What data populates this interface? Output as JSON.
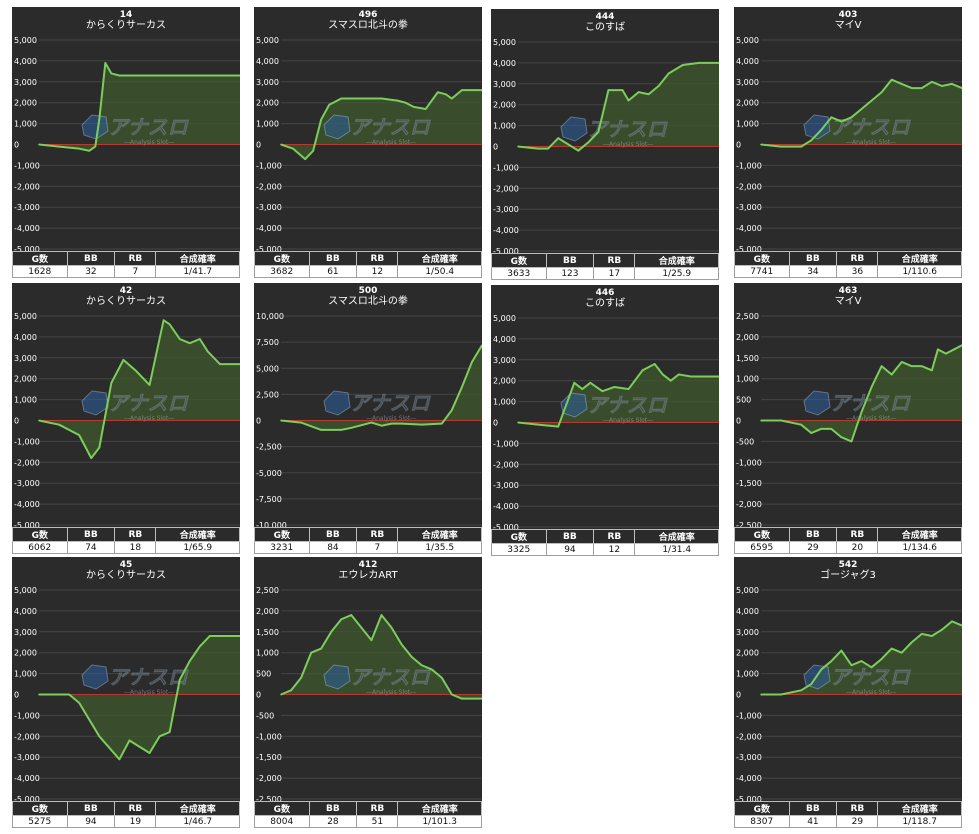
{
  "stats_headers": [
    "G数",
    "BB",
    "RB",
    "合成確率"
  ],
  "watermark": {
    "title": "アナスロ",
    "subtitle": "―Analysis Slot―"
  },
  "colors": {
    "panel_bg": "#2b2b2b",
    "line": "#7ccd5a",
    "fill": "#3f5a2e",
    "zero_line": "#b53a2f",
    "grid": "#454545",
    "text": "#ffffff"
  },
  "panels": [
    {
      "number": "14",
      "name": "からくりサーカス",
      "stats": [
        "1628",
        "32",
        "7",
        "1/41.7"
      ]
    },
    {
      "number": "496",
      "name": "スマスロ北斗の拳",
      "stats": [
        "3682",
        "61",
        "12",
        "1/50.4"
      ]
    },
    {
      "number": "444",
      "name": "このすば",
      "stats": [
        "3633",
        "123",
        "17",
        "1/25.9"
      ]
    },
    {
      "number": "403",
      "name": "マイV",
      "stats": [
        "7741",
        "34",
        "36",
        "1/110.6"
      ]
    },
    {
      "number": "42",
      "name": "からくりサーカス",
      "stats": [
        "6062",
        "74",
        "18",
        "1/65.9"
      ]
    },
    {
      "number": "500",
      "name": "スマスロ北斗の拳",
      "stats": [
        "3231",
        "84",
        "7",
        "1/35.5"
      ]
    },
    {
      "number": "446",
      "name": "このすば",
      "stats": [
        "3325",
        "94",
        "12",
        "1/31.4"
      ]
    },
    {
      "number": "463",
      "name": "マイV",
      "stats": [
        "6595",
        "29",
        "20",
        "1/134.6"
      ]
    },
    {
      "number": "45",
      "name": "からくりサーカス",
      "stats": [
        "5275",
        "94",
        "19",
        "1/46.7"
      ]
    },
    {
      "number": "412",
      "name": "エウレカART",
      "stats": [
        "8004",
        "28",
        "51",
        "1/101.3"
      ]
    },
    {
      "number": "542",
      "name": "ゴージャグ3",
      "stats": [
        "8307",
        "41",
        "29",
        "1/118.7"
      ]
    }
  ],
  "chart_data": [
    {
      "type": "area",
      "y_ticks": [
        "5,000",
        "4,000",
        "3,000",
        "2,000",
        "1,000",
        "0",
        "-1,000",
        "-2,000",
        "-3,000",
        "-4,000",
        "-5,000"
      ],
      "ylim": [
        -5000,
        5000
      ],
      "x": [
        0,
        0.1,
        0.2,
        0.25,
        0.28,
        0.3,
        0.33,
        0.36,
        0.4,
        0.5,
        0.6,
        0.8,
        1
      ],
      "y": [
        0,
        -100,
        -200,
        -300,
        -100,
        1200,
        3900,
        3400,
        3300,
        3300,
        3300,
        3300,
        3300
      ]
    },
    {
      "type": "area",
      "y_ticks": [
        "5,000",
        "4,000",
        "3,000",
        "2,000",
        "1,000",
        "0",
        "-1,000",
        "-2,000",
        "-3,000",
        "-4,000",
        "-5,000"
      ],
      "ylim": [
        -5000,
        5000
      ],
      "x": [
        0,
        0.06,
        0.12,
        0.16,
        0.2,
        0.24,
        0.3,
        0.38,
        0.5,
        0.58,
        0.62,
        0.66,
        0.72,
        0.78,
        0.82,
        0.85,
        0.9,
        1
      ],
      "y": [
        0,
        -200,
        -700,
        -300,
        1200,
        1900,
        2200,
        2200,
        2200,
        2100,
        2000,
        1800,
        1700,
        2500,
        2400,
        2200,
        2600,
        2600
      ]
    },
    {
      "type": "area",
      "y_ticks": [
        "5,000",
        "4,000",
        "3,000",
        "2,000",
        "1,000",
        "0",
        "-1,000",
        "-2,000",
        "-3,000",
        "-4,000",
        "-5,000"
      ],
      "ylim": [
        -5000,
        5000
      ],
      "x": [
        0,
        0.1,
        0.15,
        0.2,
        0.25,
        0.3,
        0.35,
        0.4,
        0.45,
        0.52,
        0.55,
        0.6,
        0.65,
        0.7,
        0.75,
        0.82,
        0.9,
        1
      ],
      "y": [
        0,
        -100,
        -100,
        400,
        100,
        -200,
        200,
        700,
        2700,
        2700,
        2200,
        2600,
        2500,
        2900,
        3500,
        3900,
        4000,
        4000
      ]
    },
    {
      "type": "area",
      "y_ticks": [
        "5,000",
        "4,000",
        "3,000",
        "2,000",
        "1,000",
        "0",
        "-1,000",
        "-2,000",
        "-3,000",
        "-4,000",
        "-5,000"
      ],
      "ylim": [
        -5000,
        5000
      ],
      "x": [
        0,
        0.1,
        0.2,
        0.25,
        0.3,
        0.35,
        0.4,
        0.45,
        0.5,
        0.55,
        0.6,
        0.65,
        0.7,
        0.75,
        0.8,
        0.85,
        0.9,
        0.95,
        1
      ],
      "y": [
        0,
        -100,
        -100,
        200,
        700,
        1300,
        1100,
        1300,
        1700,
        2100,
        2500,
        3100,
        2900,
        2700,
        2700,
        3000,
        2800,
        2900,
        2700
      ]
    },
    {
      "type": "area",
      "y_ticks": [
        "5,000",
        "4,000",
        "3,000",
        "2,000",
        "1,000",
        "0",
        "-1,000",
        "-2,000",
        "-3,000",
        "-4,000",
        "-5,000"
      ],
      "ylim": [
        -5000,
        5000
      ],
      "x": [
        0,
        0.1,
        0.2,
        0.26,
        0.3,
        0.36,
        0.42,
        0.48,
        0.55,
        0.62,
        0.65,
        0.7,
        0.75,
        0.8,
        0.84,
        0.9,
        1
      ],
      "y": [
        0,
        -200,
        -700,
        -1800,
        -1300,
        1800,
        2900,
        2400,
        1700,
        4800,
        4600,
        3900,
        3700,
        3900,
        3300,
        2700,
        2700
      ]
    },
    {
      "type": "area",
      "y_ticks": [
        "10,000",
        "7,500",
        "5,000",
        "2,500",
        "0",
        "-2,500",
        "-5,000",
        "-7,500",
        "-10,000"
      ],
      "ylim": [
        -10000,
        10000
      ],
      "x": [
        0,
        0.1,
        0.2,
        0.3,
        0.35,
        0.45,
        0.5,
        0.55,
        0.6,
        0.7,
        0.8,
        0.85,
        0.9,
        0.95,
        1
      ],
      "y": [
        0,
        -200,
        -900,
        -900,
        -700,
        -200,
        -500,
        -300,
        -300,
        -400,
        -300,
        1000,
        3200,
        5600,
        7200
      ]
    },
    {
      "type": "area",
      "y_ticks": [
        "5,000",
        "4,000",
        "3,000",
        "2,000",
        "1,000",
        "0",
        "-1,000",
        "-2,000",
        "-3,000",
        "-4,000",
        "-5,000"
      ],
      "ylim": [
        -5000,
        5000
      ],
      "x": [
        0,
        0.1,
        0.2,
        0.28,
        0.32,
        0.36,
        0.42,
        0.48,
        0.55,
        0.62,
        0.68,
        0.72,
        0.76,
        0.8,
        0.86,
        1
      ],
      "y": [
        0,
        -100,
        -200,
        1900,
        1600,
        1900,
        1500,
        1700,
        1600,
        2500,
        2800,
        2300,
        2000,
        2300,
        2200,
        2200
      ]
    },
    {
      "type": "area",
      "y_ticks": [
        "2,500",
        "2,000",
        "1,500",
        "1,000",
        "500",
        "0",
        "-500",
        "-1,000",
        "-1,500",
        "-2,000",
        "-2,500"
      ],
      "ylim": [
        -2500,
        2500
      ],
      "x": [
        0,
        0.1,
        0.2,
        0.25,
        0.3,
        0.35,
        0.4,
        0.45,
        0.5,
        0.55,
        0.6,
        0.65,
        0.7,
        0.75,
        0.8,
        0.85,
        0.88,
        0.92,
        0.96,
        1
      ],
      "y": [
        0,
        0,
        -100,
        -300,
        -200,
        -200,
        -400,
        -500,
        200,
        800,
        1300,
        1100,
        1400,
        1300,
        1300,
        1200,
        1700,
        1600,
        1700,
        1800
      ]
    },
    {
      "type": "area",
      "y_ticks": [
        "5,000",
        "4,000",
        "3,000",
        "2,000",
        "1,000",
        "0",
        "-1,000",
        "-2,000",
        "-3,000",
        "-4,000",
        "-5,000"
      ],
      "ylim": [
        -5000,
        5000
      ],
      "x": [
        0,
        0.15,
        0.2,
        0.3,
        0.4,
        0.45,
        0.5,
        0.55,
        0.6,
        0.65,
        0.7,
        0.75,
        0.8,
        0.85,
        0.9,
        1
      ],
      "y": [
        0,
        0,
        -400,
        -2000,
        -3100,
        -2200,
        -2500,
        -2800,
        -2000,
        -1800,
        700,
        1600,
        2300,
        2800,
        2800,
        2800
      ]
    },
    {
      "type": "area",
      "y_ticks": [
        "2,500",
        "2,000",
        "1,500",
        "1,000",
        "500",
        "0",
        "-500",
        "-1,000",
        "-1,500",
        "-2,000",
        "-2,500"
      ],
      "ylim": [
        -2500,
        2500
      ],
      "x": [
        0,
        0.05,
        0.1,
        0.15,
        0.2,
        0.25,
        0.3,
        0.35,
        0.4,
        0.45,
        0.5,
        0.55,
        0.6,
        0.65,
        0.7,
        0.75,
        0.8,
        0.85,
        0.9,
        1
      ],
      "y": [
        0,
        100,
        400,
        1000,
        1100,
        1500,
        1800,
        1900,
        1600,
        1300,
        1900,
        1600,
        1200,
        900,
        700,
        600,
        400,
        0,
        -100,
        -100
      ]
    },
    {
      "type": "area",
      "y_ticks": [
        "5,000",
        "4,000",
        "3,000",
        "2,000",
        "1,000",
        "0",
        "-1,000",
        "-2,000",
        "-3,000",
        "-4,000",
        "-5,000"
      ],
      "ylim": [
        -5000,
        5000
      ],
      "x": [
        0,
        0.1,
        0.2,
        0.25,
        0.3,
        0.35,
        0.4,
        0.45,
        0.5,
        0.55,
        0.6,
        0.65,
        0.7,
        0.75,
        0.8,
        0.85,
        0.9,
        0.95,
        1
      ],
      "y": [
        0,
        0,
        200,
        500,
        1200,
        1600,
        2100,
        1400,
        1600,
        1300,
        1700,
        2200,
        2000,
        2500,
        2900,
        2800,
        3100,
        3500,
        3300
      ]
    }
  ]
}
